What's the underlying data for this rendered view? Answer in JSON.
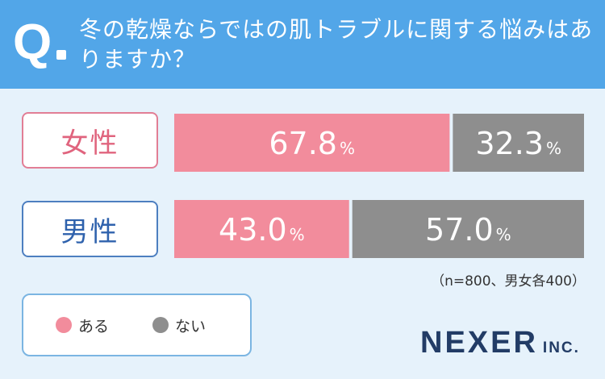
{
  "header": {
    "q_mark": "Q",
    "question": "冬の乾燥ならではの肌トラブルに関する悩みはありますか？"
  },
  "colors": {
    "yes": "#f28c9c",
    "no": "#8e8e8e",
    "header": "#52a6e8",
    "background": "#e6f2fb"
  },
  "chart_data": {
    "type": "bar",
    "orientation": "horizontal",
    "stacked": true,
    "categories": [
      "女性",
      "男性"
    ],
    "series": [
      {
        "name": "ある",
        "values": [
          67.8,
          43.0
        ],
        "labels": [
          "67.8",
          "43.0"
        ]
      },
      {
        "name": "ない",
        "values": [
          32.3,
          57.0
        ],
        "labels": [
          "32.3",
          "57.0"
        ]
      }
    ],
    "unit": "%",
    "xlim": [
      0,
      100
    ],
    "legend": "bottom-left",
    "grid": false
  },
  "note": "（n=800、男女各400）",
  "legend": {
    "items": [
      {
        "label": "ある"
      },
      {
        "label": "ない"
      }
    ]
  },
  "logo": {
    "main": "NEXER",
    "sub": "INC."
  }
}
